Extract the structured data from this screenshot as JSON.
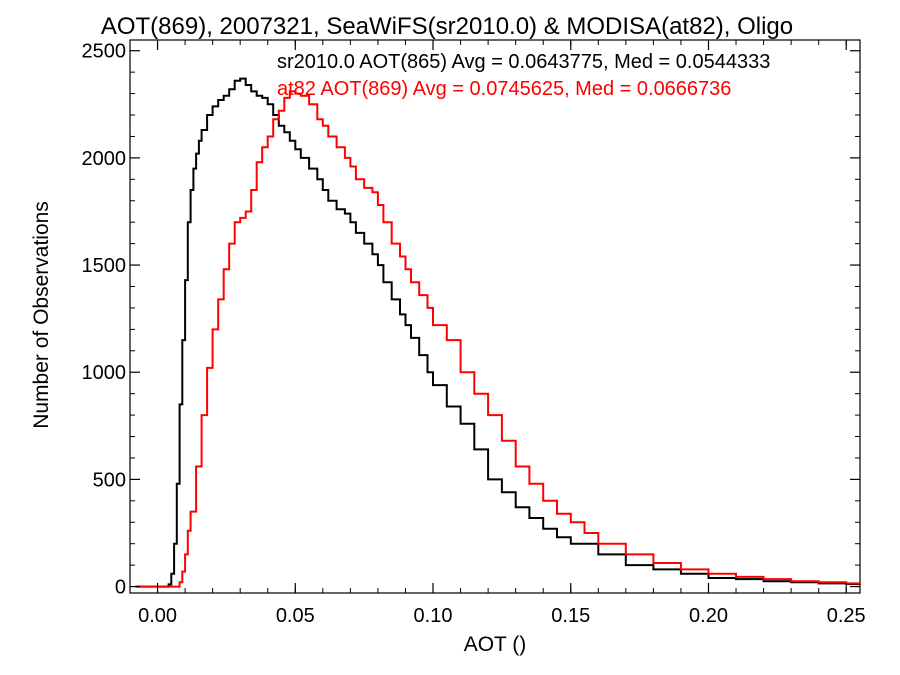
{
  "chart_data": {
    "type": "line",
    "title": "AOT(869), 2007321, SeaWiFS(sr2010.0) & MODISA(at82), Oligo",
    "xlabel": "AOT ()",
    "ylabel": "Number of Observations",
    "xlim": [
      -0.01,
      0.255
    ],
    "ylim": [
      -30,
      2550
    ],
    "x_ticks": [
      0.0,
      0.05,
      0.1,
      0.15,
      0.2,
      0.25
    ],
    "x_tick_labels": [
      "0.00",
      "0.05",
      "0.10",
      "0.15",
      "0.20",
      "0.25"
    ],
    "y_ticks": [
      0,
      500,
      1000,
      1500,
      2000,
      2500
    ],
    "y_tick_labels": [
      "0",
      "500",
      "1000",
      "1500",
      "2000",
      "2500"
    ],
    "grid": false,
    "annotations": [
      {
        "text": "sr2010.0 AOT(865) Avg = 0.0643775, Med = 0.0544333",
        "color": "#000000"
      },
      {
        "text": "at82 AOT(869) Avg = 0.0745625, Med = 0.0666736",
        "color": "#ff0000"
      }
    ],
    "series": [
      {
        "color": "#000000",
        "x": [
          -0.008,
          0.0,
          0.004,
          0.005,
          0.006,
          0.007,
          0.008,
          0.009,
          0.01,
          0.011,
          0.012,
          0.013,
          0.014,
          0.015,
          0.016,
          0.018,
          0.02,
          0.022,
          0.024,
          0.026,
          0.028,
          0.03,
          0.032,
          0.034,
          0.036,
          0.038,
          0.04,
          0.042,
          0.044,
          0.046,
          0.048,
          0.05,
          0.052,
          0.055,
          0.058,
          0.06,
          0.062,
          0.065,
          0.068,
          0.07,
          0.072,
          0.075,
          0.078,
          0.08,
          0.082,
          0.085,
          0.088,
          0.09,
          0.092,
          0.095,
          0.098,
          0.1,
          0.105,
          0.11,
          0.115,
          0.12,
          0.125,
          0.13,
          0.135,
          0.14,
          0.145,
          0.15,
          0.16,
          0.17,
          0.18,
          0.19,
          0.2,
          0.21,
          0.22,
          0.23,
          0.24,
          0.25,
          0.255
        ],
        "y": [
          0,
          0,
          10,
          60,
          200,
          480,
          850,
          1150,
          1430,
          1700,
          1850,
          1950,
          2020,
          2080,
          2130,
          2200,
          2240,
          2270,
          2290,
          2320,
          2360,
          2370,
          2340,
          2310,
          2290,
          2280,
          2250,
          2200,
          2150,
          2120,
          2080,
          2040,
          2000,
          1950,
          1900,
          1850,
          1800,
          1760,
          1740,
          1700,
          1650,
          1600,
          1550,
          1500,
          1420,
          1340,
          1270,
          1220,
          1160,
          1080,
          1000,
          940,
          840,
          760,
          640,
          500,
          440,
          370,
          320,
          270,
          230,
          200,
          150,
          100,
          80,
          60,
          40,
          35,
          25,
          20,
          15,
          12,
          10
        ]
      },
      {
        "color": "#ff0000",
        "x": [
          -0.008,
          0.0,
          0.008,
          0.009,
          0.01,
          0.011,
          0.012,
          0.014,
          0.016,
          0.018,
          0.02,
          0.022,
          0.024,
          0.026,
          0.028,
          0.03,
          0.032,
          0.034,
          0.036,
          0.038,
          0.04,
          0.042,
          0.044,
          0.046,
          0.048,
          0.05,
          0.052,
          0.055,
          0.058,
          0.06,
          0.062,
          0.065,
          0.068,
          0.07,
          0.072,
          0.075,
          0.078,
          0.08,
          0.082,
          0.085,
          0.088,
          0.09,
          0.092,
          0.095,
          0.098,
          0.1,
          0.105,
          0.11,
          0.115,
          0.12,
          0.125,
          0.13,
          0.135,
          0.14,
          0.145,
          0.15,
          0.155,
          0.16,
          0.17,
          0.18,
          0.19,
          0.2,
          0.21,
          0.22,
          0.23,
          0.24,
          0.25,
          0.255
        ],
        "y": [
          0,
          0,
          20,
          70,
          150,
          260,
          350,
          560,
          800,
          1020,
          1200,
          1340,
          1480,
          1600,
          1700,
          1720,
          1750,
          1850,
          1980,
          2050,
          2100,
          2180,
          2220,
          2280,
          2310,
          2300,
          2290,
          2250,
          2180,
          2150,
          2100,
          2050,
          2000,
          1960,
          1900,
          1860,
          1840,
          1780,
          1700,
          1600,
          1540,
          1480,
          1420,
          1360,
          1300,
          1220,
          1150,
          1000,
          900,
          800,
          680,
          560,
          480,
          400,
          340,
          300,
          250,
          200,
          150,
          110,
          80,
          60,
          45,
          35,
          25,
          20,
          15,
          12
        ]
      }
    ]
  }
}
